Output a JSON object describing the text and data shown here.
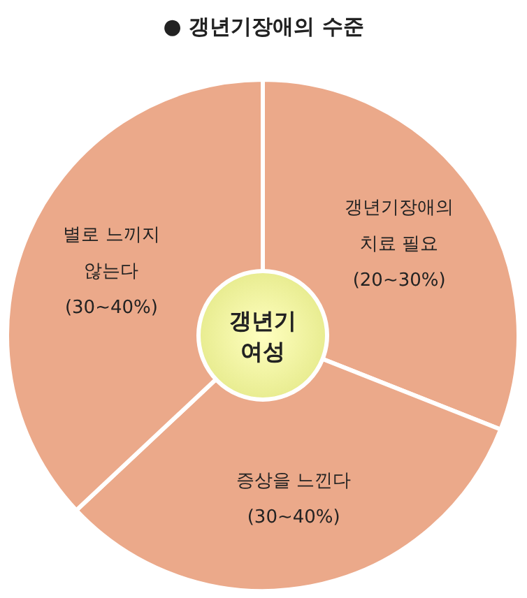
{
  "chart_data": {
    "type": "pie",
    "title": "● 갱년기장애의 수준",
    "categories": [
      "갱년기장애의 치료 필요 (20~30%)",
      "증상을 느낀다 (30~40%)",
      "별로 느끼지 않는다 (30~40%)"
    ],
    "values": [
      31,
      32,
      37
    ],
    "colors": [
      "#eba98a",
      "#eba98a",
      "#eba98a"
    ],
    "annotations": [
      "갱년기 여성"
    ]
  }
}
